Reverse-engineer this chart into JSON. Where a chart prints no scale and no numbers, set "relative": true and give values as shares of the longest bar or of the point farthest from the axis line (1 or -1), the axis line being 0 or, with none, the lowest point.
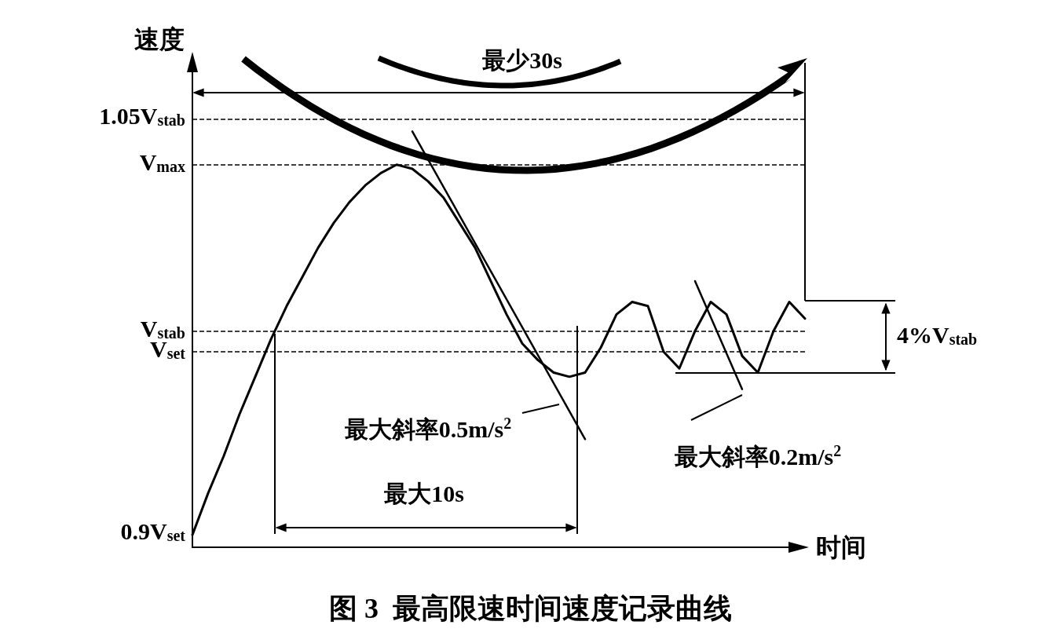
{
  "chart_data": {
    "type": "line",
    "title": "图 3  最高限速时间速度记录曲线",
    "xlabel": "时间",
    "ylabel": "速度",
    "relative": true,
    "marker": "none",
    "grid": false,
    "categories": [
      null,
      null,
      null,
      null,
      null,
      null,
      null,
      null,
      null,
      null,
      null,
      null,
      null,
      null,
      null,
      null,
      null,
      null,
      null,
      null,
      null,
      null,
      null,
      null,
      null,
      null,
      null,
      null,
      null,
      null,
      null,
      null,
      null,
      null,
      null,
      null,
      null,
      null,
      null,
      null
    ],
    "series": [
      {
        "color": "#000000",
        "values": [
          0.03,
          0.13,
          0.22,
          0.32,
          0.41,
          0.5,
          0.58,
          0.65,
          0.72,
          0.78,
          0.83,
          0.87,
          0.9,
          0.92,
          0.91,
          0.88,
          0.84,
          0.78,
          0.72,
          0.64,
          0.56,
          0.49,
          0.45,
          0.42,
          0.41,
          0.42,
          0.48,
          0.56,
          0.59,
          0.58,
          0.47,
          0.43,
          0.52,
          0.59,
          0.56,
          0.46,
          0.42,
          0.52,
          0.59,
          0.55
        ]
      },
      {
        "color": "#000000",
        "values": [
          null,
          null,
          null,
          null,
          null,
          null,
          null,
          null,
          null,
          null,
          null,
          null,
          null,
          null,
          1.0,
          null,
          null,
          null,
          null,
          null,
          null,
          null,
          null,
          null,
          null,
          0.26,
          null,
          null,
          null,
          null,
          null,
          null,
          null,
          null,
          null,
          null,
          null,
          null,
          null,
          null
        ]
      },
      {
        "color": "#000000",
        "values": [
          null,
          null,
          null,
          null,
          null,
          null,
          null,
          null,
          null,
          null,
          null,
          null,
          null,
          null,
          null,
          null,
          null,
          null,
          null,
          null,
          null,
          null,
          null,
          null,
          null,
          null,
          null,
          null,
          null,
          null,
          null,
          null,
          0.64,
          null,
          null,
          0.38,
          null,
          null,
          null,
          null
        ]
      }
    ],
    "ref_lines": [
      {
        "axis": "y",
        "value": 1.03,
        "label": "1.05V$_{stab}$",
        "line_style": "dashed"
      },
      {
        "axis": "y",
        "value": 0.92,
        "label": "V$_{max}$",
        "line_style": "dashed"
      },
      {
        "axis": "y",
        "value": 0.52,
        "label": "V$_{stab}$",
        "line_style": "dashed"
      },
      {
        "axis": "y",
        "value": 0.47,
        "label": "V$_{set}$",
        "line_style": "dashed"
      }
    ],
    "annotations": [
      "最少30s",
      "最大斜率0.5m/s$^{2}$",
      "最大10s",
      "最大斜率0.2m/s$^{2}$",
      "4%V$_{stab}$",
      "0.9V$_{set}$"
    ]
  }
}
